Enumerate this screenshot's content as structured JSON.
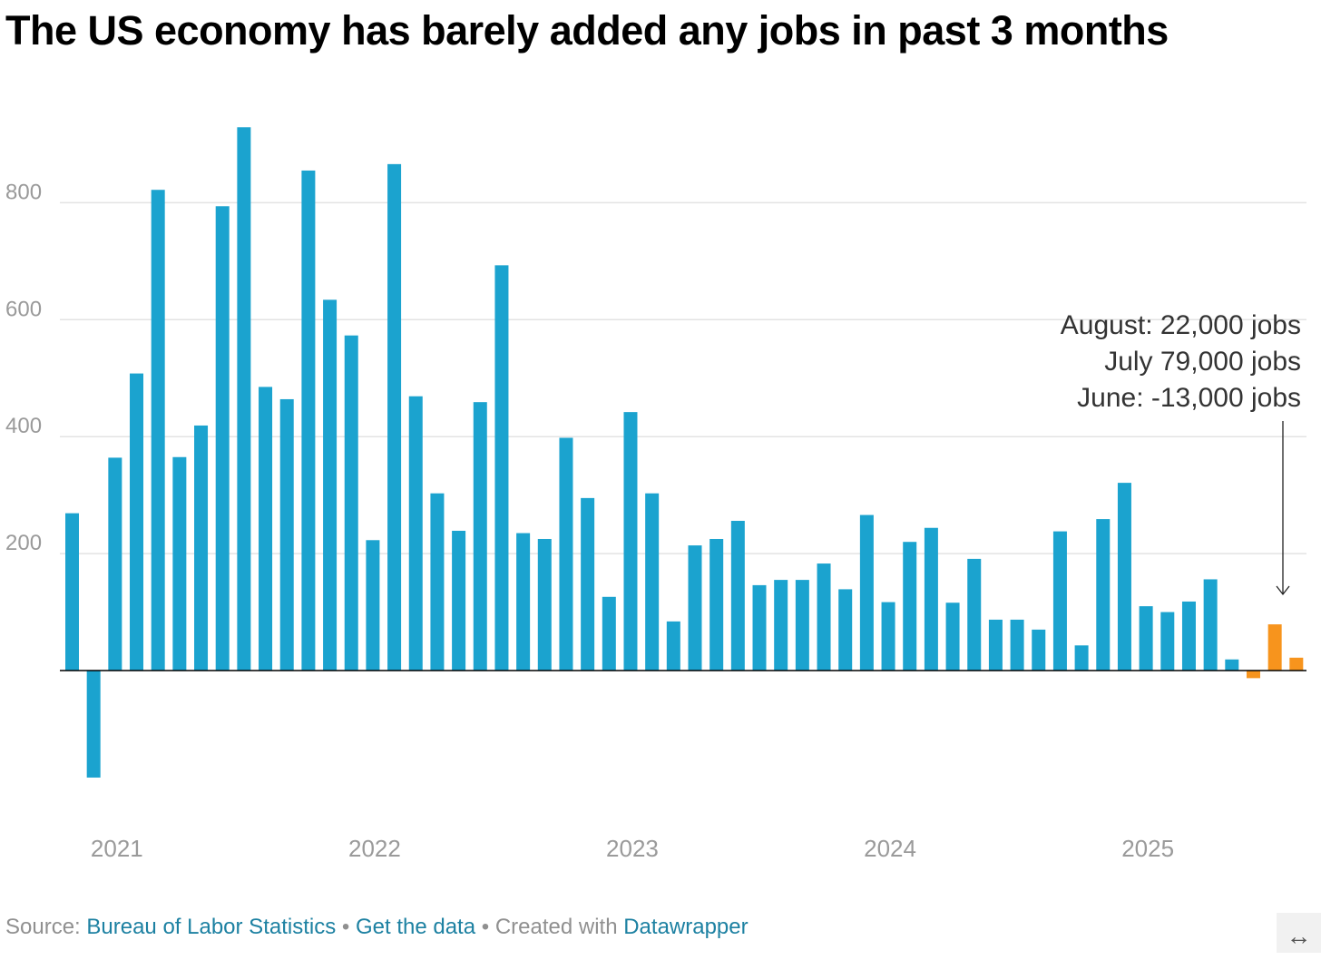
{
  "title": "The US economy has barely added any jobs in past 3 months",
  "footer": {
    "source_prefix": "Source:",
    "source_link": "Bureau of Labor Statistics",
    "sep1": "•",
    "data_link": "Get the data",
    "sep2": "•",
    "created_text": "Created with",
    "tool_link": "Datawrapper"
  },
  "expand_icon": "↔",
  "colors": {
    "bar": "#1ba3cf",
    "highlight": "#f7941d",
    "grid": "#e3e3e3",
    "axis": "#000000",
    "tick": "#9a9a9a"
  },
  "chart_data": {
    "type": "bar",
    "title": "The US economy has barely added any jobs in past 3 months",
    "xlabel": "",
    "ylabel": "",
    "ylim": [
      -230,
      930
    ],
    "yticks": [
      200,
      400,
      600,
      800
    ],
    "xticks": [
      {
        "label": "2021",
        "x": "2021-01"
      },
      {
        "label": "2022",
        "x": "2022-01"
      },
      {
        "label": "2023",
        "x": "2023-01"
      },
      {
        "label": "2024",
        "x": "2024-01"
      },
      {
        "label": "2025",
        "x": "2025-01"
      }
    ],
    "grid": true,
    "x": [
      "2020-11",
      "2020-12",
      "2021-01",
      "2021-02",
      "2021-03",
      "2021-04",
      "2021-05",
      "2021-06",
      "2021-07",
      "2021-08",
      "2021-09",
      "2021-10",
      "2021-11",
      "2021-12",
      "2022-01",
      "2022-02",
      "2022-03",
      "2022-04",
      "2022-05",
      "2022-06",
      "2022-07",
      "2022-08",
      "2022-09",
      "2022-10",
      "2022-11",
      "2022-12",
      "2023-01",
      "2023-02",
      "2023-03",
      "2023-04",
      "2023-05",
      "2023-06",
      "2023-07",
      "2023-08",
      "2023-09",
      "2023-10",
      "2023-11",
      "2023-12",
      "2024-01",
      "2024-02",
      "2024-03",
      "2024-04",
      "2024-05",
      "2024-06",
      "2024-07",
      "2024-08",
      "2024-09",
      "2024-10",
      "2024-11",
      "2024-12",
      "2025-01",
      "2025-02",
      "2025-03",
      "2025-04",
      "2025-05",
      "2025-06",
      "2025-07",
      "2025-08"
    ],
    "values": [
      269,
      -183,
      364,
      508,
      822,
      365,
      419,
      794,
      929,
      485,
      464,
      855,
      634,
      573,
      223,
      866,
      469,
      303,
      239,
      459,
      693,
      235,
      225,
      398,
      295,
      126,
      442,
      303,
      84,
      214,
      225,
      256,
      146,
      155,
      155,
      183,
      139,
      266,
      117,
      220,
      244,
      116,
      191,
      87,
      87,
      70,
      238,
      43,
      259,
      321,
      110,
      100,
      118,
      156,
      19,
      -13,
      79,
      22
    ],
    "highlight": [
      "2025-06",
      "2025-07",
      "2025-08"
    ],
    "annotation": {
      "lines": [
        "August: 22,000 jobs",
        "July 79,000 jobs",
        "June: -13,000 jobs"
      ],
      "points_to": "2025-07"
    }
  }
}
